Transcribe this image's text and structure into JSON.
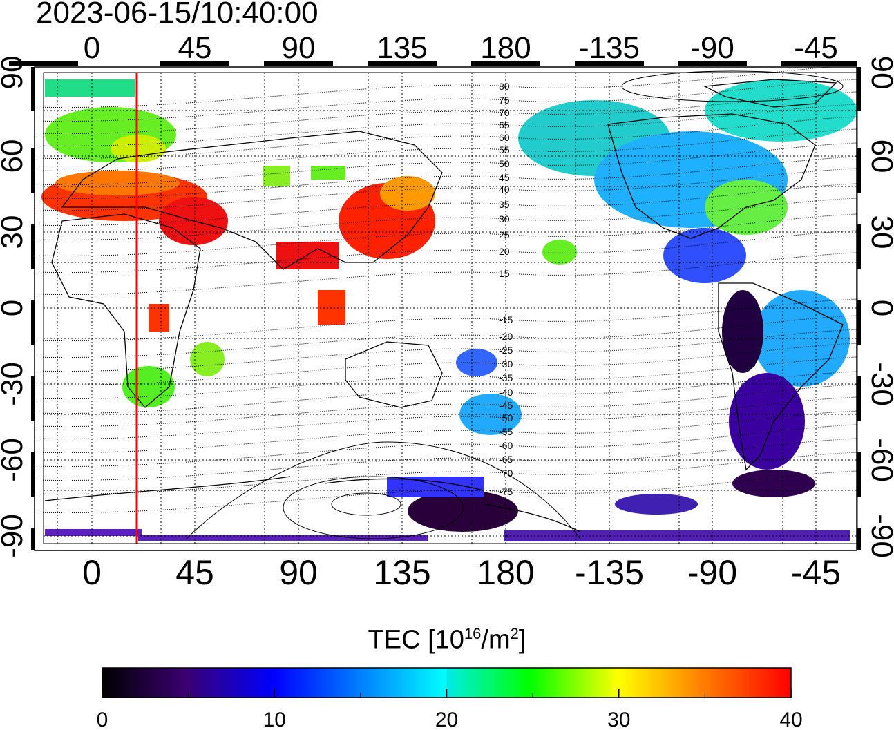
{
  "timestamp": "2023-06-15/10:40:00",
  "map": {
    "projection": "equirectangular",
    "lon_axis_top_labels": [
      "0",
      "45",
      "90",
      "135",
      "180",
      "-135",
      "-90",
      "-45"
    ],
    "lon_axis_bottom_labels": [
      "0",
      "45",
      "90",
      "135",
      "180",
      "-135",
      "-90",
      "-45"
    ],
    "lat_axis_left_labels": [
      "90",
      "60",
      "30",
      "0",
      "-30",
      "-60",
      "-90"
    ],
    "lat_axis_right_labels": [
      "90",
      "60",
      "30",
      "0",
      "-30",
      "-60",
      "-90"
    ],
    "lat_range": [
      -90,
      90
    ],
    "grid": true,
    "contour_labels": [
      "80",
      "75",
      "70",
      "65",
      "60",
      "55",
      "50",
      "45",
      "40",
      "35",
      "30",
      "25",
      "20",
      "15",
      "-15",
      "-20",
      "-25",
      "-30",
      "-35",
      "-40",
      "-45",
      "-50",
      "-55",
      "-60",
      "-65",
      "-70",
      "-75"
    ],
    "marker_line": {
      "description": "vertical red line",
      "lon": 20,
      "color": "#ff0000"
    },
    "colors": {
      "land_outline": "#000000",
      "grid": "#000000",
      "contour": "#000000"
    }
  },
  "colorbar": {
    "title_main": "TEC  [10",
    "title_exp": "16",
    "title_mid": "/m",
    "title_exp2": "2",
    "title_end": "]",
    "tick_labels": [
      "0",
      "10",
      "20",
      "30",
      "40"
    ],
    "range": [
      0,
      40
    ],
    "colormap": [
      "#000000",
      "#3a0070",
      "#0000ff",
      "#00ffff",
      "#00ff00",
      "#ffff00",
      "#ff8000",
      "#ff0000"
    ]
  }
}
